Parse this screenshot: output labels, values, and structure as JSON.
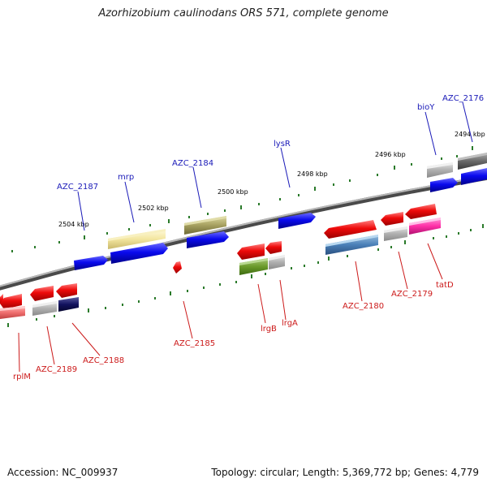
{
  "title": "Azorhizobium caulinodans ORS 571, complete genome",
  "footer": {
    "accession": "Accession: NC_009937",
    "info": "Topology: circular; Length: 5,369,772 bp; Genes: 4,779"
  },
  "ticks": [
    "2504 kbp",
    "2502 kbp",
    "2500 kbp",
    "2498 kbp",
    "2496 kbp",
    "2494 kbp"
  ],
  "labels_top": [
    "AZC_2187",
    "mrp",
    "AZC_2184",
    "lysR",
    "bioY",
    "AZC_2176"
  ],
  "labels_bottom": [
    "rplM",
    "AZC_2189",
    "AZC_2188",
    "AZC_2185",
    "lrgB",
    "lrgA",
    "AZC_2180",
    "AZC_2179",
    "tatD"
  ],
  "colors": {
    "forward": "#0a0aee",
    "reverse": "#ee0a0a",
    "backbone": "#8a8a8a",
    "tick": "#2a7a2a",
    "label_blue": "#1a1ab8",
    "label_red": "#cc1a1a"
  }
}
